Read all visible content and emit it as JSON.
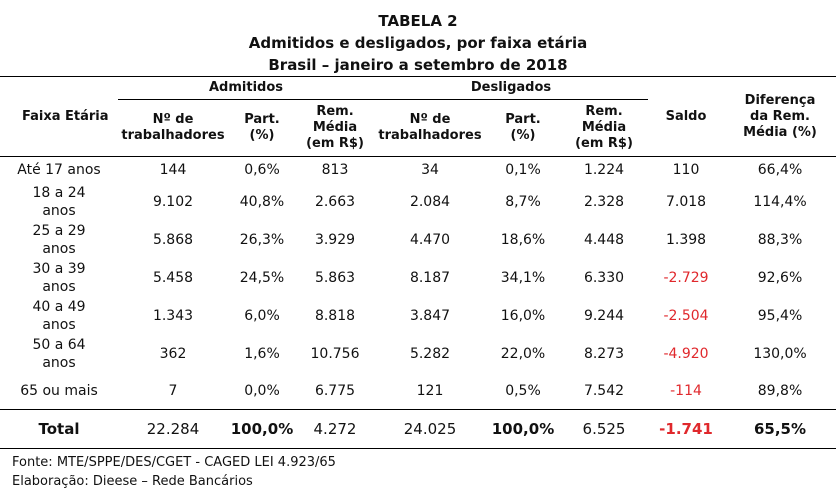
{
  "header": {
    "title1": "TABELA 2",
    "title2": "Admitidos e desligados, por faixa etária",
    "title3": "Brasil – janeiro a setembro de 2018"
  },
  "columns": {
    "faixa": "Faixa Etária",
    "admitidos_group": "Admitidos",
    "desligados_group": "Desligados",
    "num_trab_line1": "Nº de",
    "num_trab_line2": "trabalhadores",
    "part_line1": "Part.",
    "part_line2": "(%)",
    "rem_line1": "Rem.",
    "rem_line2": "Média",
    "rem_line3": "(em R$)",
    "saldo": "Saldo",
    "dif_line1": "Diferença",
    "dif_line2": "da Rem.",
    "dif_line3": "Média (%)"
  },
  "rows": [
    {
      "faixa_l1": "Até 17 anos",
      "faixa_l2": "",
      "adm_n": "144",
      "adm_part": "0,6%",
      "adm_rem": "813",
      "des_n": "34",
      "des_part": "0,1%",
      "des_rem": "1.224",
      "saldo": "110",
      "dif": "66,4%",
      "neg": false
    },
    {
      "faixa_l1": "18 a 24",
      "faixa_l2": "anos",
      "adm_n": "9.102",
      "adm_part": "40,8%",
      "adm_rem": "2.663",
      "des_n": "2.084",
      "des_part": "8,7%",
      "des_rem": "2.328",
      "saldo": "7.018",
      "dif": "114,4%",
      "neg": false
    },
    {
      "faixa_l1": "25 a 29",
      "faixa_l2": "anos",
      "adm_n": "5.868",
      "adm_part": "26,3%",
      "adm_rem": "3.929",
      "des_n": "4.470",
      "des_part": "18,6%",
      "des_rem": "4.448",
      "saldo": "1.398",
      "dif": "88,3%",
      "neg": false
    },
    {
      "faixa_l1": "30 a 39",
      "faixa_l2": "anos",
      "adm_n": "5.458",
      "adm_part": "24,5%",
      "adm_rem": "5.863",
      "des_n": "8.187",
      "des_part": "34,1%",
      "des_rem": "6.330",
      "saldo": "-2.729",
      "dif": "92,6%",
      "neg": true
    },
    {
      "faixa_l1": "40 a 49",
      "faixa_l2": "anos",
      "adm_n": "1.343",
      "adm_part": "6,0%",
      "adm_rem": "8.818",
      "des_n": "3.847",
      "des_part": "16,0%",
      "des_rem": "9.244",
      "saldo": "-2.504",
      "dif": "95,4%",
      "neg": true
    },
    {
      "faixa_l1": "50 a 64",
      "faixa_l2": "anos",
      "adm_n": "362",
      "adm_part": "1,6%",
      "adm_rem": "10.756",
      "des_n": "5.282",
      "des_part": "22,0%",
      "des_rem": "8.273",
      "saldo": "-4.920",
      "dif": "130,0%",
      "neg": true
    },
    {
      "faixa_l1": "65 ou mais",
      "faixa_l2": "",
      "adm_n": "7",
      "adm_part": "0,0%",
      "adm_rem": "6.775",
      "des_n": "121",
      "des_part": "0,5%",
      "des_rem": "7.542",
      "saldo": "-114",
      "dif": "89,8%",
      "neg": true
    }
  ],
  "total": {
    "label": "Total",
    "adm_n": "22.284",
    "adm_part": "100,0%",
    "adm_rem": "4.272",
    "des_n": "24.025",
    "des_part": "100,0%",
    "des_rem": "6.525",
    "saldo": "-1.741",
    "dif": "65,5%"
  },
  "footer": {
    "fonte": "Fonte: MTE/SPPE/DES/CGET - CAGED LEI 4.923/65",
    "elaboracao": "Elaboração: Dieese – Rede Bancários"
  },
  "colors": {
    "negative": "#e0282c",
    "text": "#111111",
    "rule": "#000000"
  }
}
